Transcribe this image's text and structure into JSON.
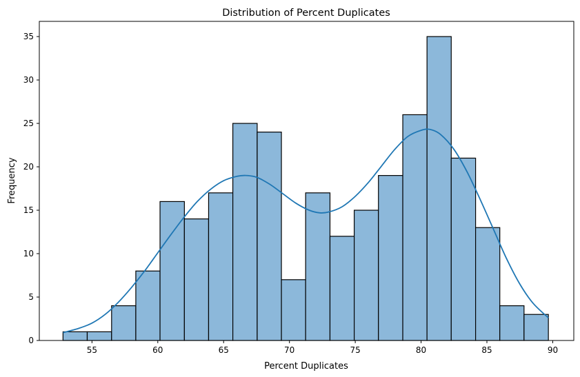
{
  "chart_data": {
    "type": "bar",
    "title": "Distribution of Percent Duplicates",
    "xlabel": "Percent Duplicates",
    "ylabel": "Frequency",
    "xlim": [
      51.0,
      91.6
    ],
    "ylim": [
      0,
      36.75
    ],
    "xticks": [
      55,
      60,
      65,
      70,
      75,
      80,
      85,
      90
    ],
    "yticks": [
      0,
      5,
      10,
      15,
      20,
      25,
      30,
      35
    ],
    "grid": false,
    "bar_color": "#8cb8da",
    "line_color": "#1f77b4",
    "bins": [
      {
        "x0": 52.8,
        "x1": 54.64,
        "value": 1
      },
      {
        "x0": 54.64,
        "x1": 56.49,
        "value": 1
      },
      {
        "x0": 56.49,
        "x1": 58.33,
        "value": 4
      },
      {
        "x0": 58.33,
        "x1": 60.17,
        "value": 8
      },
      {
        "x0": 60.17,
        "x1": 62.02,
        "value": 16
      },
      {
        "x0": 62.02,
        "x1": 63.86,
        "value": 14
      },
      {
        "x0": 63.86,
        "x1": 65.7,
        "value": 17
      },
      {
        "x0": 65.7,
        "x1": 67.55,
        "value": 25
      },
      {
        "x0": 67.55,
        "x1": 69.39,
        "value": 24
      },
      {
        "x0": 69.39,
        "x1": 71.23,
        "value": 7
      },
      {
        "x0": 71.23,
        "x1": 73.08,
        "value": 17
      },
      {
        "x0": 73.08,
        "x1": 74.92,
        "value": 12
      },
      {
        "x0": 74.92,
        "x1": 76.76,
        "value": 15
      },
      {
        "x0": 76.76,
        "x1": 78.61,
        "value": 19
      },
      {
        "x0": 78.61,
        "x1": 80.45,
        "value": 26
      },
      {
        "x0": 80.45,
        "x1": 82.29,
        "value": 35
      },
      {
        "x0": 82.29,
        "x1": 84.14,
        "value": 21
      },
      {
        "x0": 84.14,
        "x1": 85.98,
        "value": 13
      },
      {
        "x0": 85.98,
        "x1": 87.82,
        "value": 4
      },
      {
        "x0": 87.82,
        "x1": 89.67,
        "value": 3
      }
    ],
    "kde": {
      "x": [
        52.8,
        54.0,
        55.0,
        56.0,
        57.0,
        58.0,
        59.0,
        60.0,
        61.0,
        62.0,
        63.0,
        64.0,
        65.0,
        66.0,
        66.7,
        67.5,
        68.5,
        69.5,
        70.5,
        71.5,
        72.3,
        73.0,
        74.0,
        75.0,
        76.0,
        77.0,
        78.0,
        79.0,
        80.0,
        80.7,
        81.5,
        82.5,
        83.5,
        84.5,
        85.5,
        86.5,
        87.5,
        88.5,
        89.67
      ],
      "y": [
        0.9,
        1.4,
        2.0,
        3.0,
        4.4,
        6.1,
        8.0,
        10.1,
        12.2,
        14.2,
        16.0,
        17.4,
        18.4,
        18.9,
        19.0,
        18.8,
        18.0,
        16.9,
        15.8,
        15.0,
        14.7,
        14.8,
        15.4,
        16.6,
        18.2,
        20.1,
        22.0,
        23.5,
        24.2,
        24.3,
        23.7,
        22.0,
        19.4,
        16.2,
        12.8,
        9.4,
        6.5,
        4.3,
        2.6
      ]
    }
  }
}
